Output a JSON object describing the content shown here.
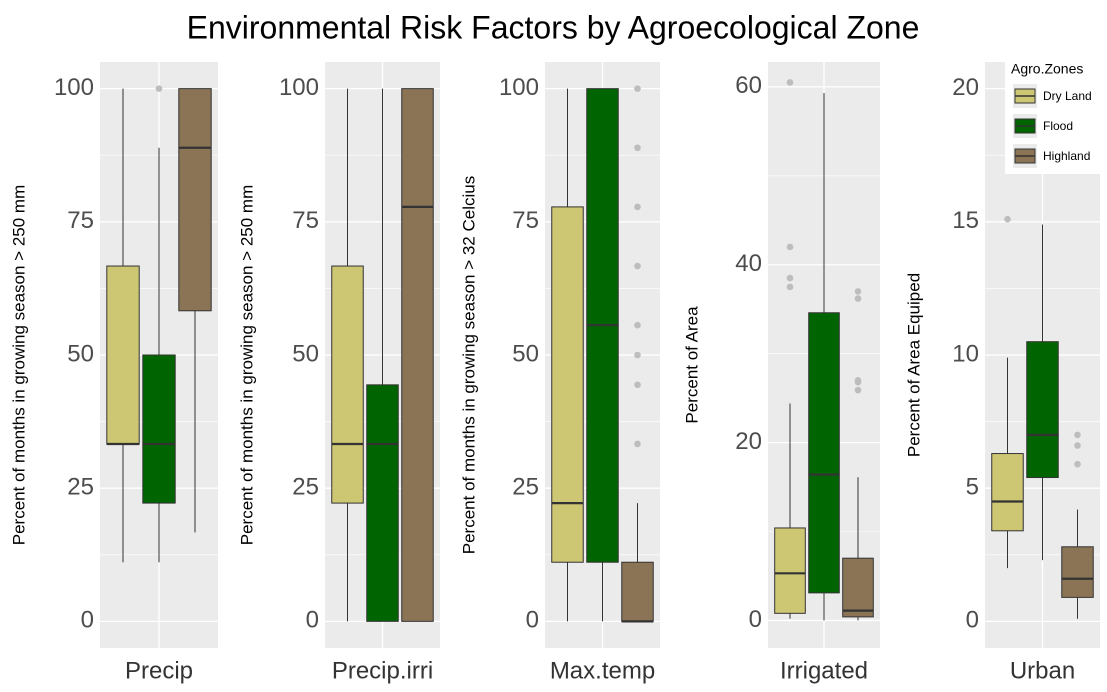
{
  "title": "Environmental Risk Factors by Agroecological Zone",
  "chart_data": [
    {
      "type": "box",
      "category": "Precip",
      "ylabel": "Percent of months in growing season > 250 mm",
      "ylim": [
        -5,
        105
      ],
      "yticks": [
        0,
        25,
        50,
        75,
        100
      ],
      "series": [
        {
          "name": "Dry Land",
          "color": "#cdc673",
          "whislo": 11.1,
          "q1": 33.3,
          "med": 33.3,
          "q3": 66.7,
          "whishi": 100,
          "fliers": []
        },
        {
          "name": "Flood",
          "color": "#006400",
          "whislo": 11.1,
          "q1": 22.2,
          "med": 33.3,
          "q3": 50,
          "whishi": 88.9,
          "fliers": [
            100
          ]
        },
        {
          "name": "Highland",
          "color": "#8b7355",
          "whislo": 16.7,
          "q1": 58.3,
          "med": 88.9,
          "q3": 100,
          "whishi": 100,
          "fliers": []
        }
      ]
    },
    {
      "type": "box",
      "category": "Precip.irri",
      "ylabel": "Percent of months in growing season > 250 mm",
      "ylim": [
        -5,
        105
      ],
      "yticks": [
        0,
        25,
        50,
        75,
        100
      ],
      "series": [
        {
          "name": "Dry Land",
          "color": "#cdc673",
          "whislo": 0,
          "q1": 22.2,
          "med": 33.3,
          "q3": 66.7,
          "whishi": 100,
          "fliers": []
        },
        {
          "name": "Flood",
          "color": "#006400",
          "whislo": 0,
          "q1": 0,
          "med": 33.3,
          "q3": 44.4,
          "whishi": 100,
          "fliers": []
        },
        {
          "name": "Highland",
          "color": "#8b7355",
          "whislo": 0,
          "q1": 0,
          "med": 77.8,
          "q3": 100,
          "whishi": 100,
          "fliers": []
        }
      ]
    },
    {
      "type": "box",
      "category": "Max.temp",
      "ylabel": "Percent of months in growing season > 32 Celcius",
      "ylim": [
        -5,
        105
      ],
      "yticks": [
        0,
        25,
        50,
        75,
        100
      ],
      "series": [
        {
          "name": "Dry Land",
          "color": "#cdc673",
          "whislo": 0,
          "q1": 11.1,
          "med": 22.2,
          "q3": 77.8,
          "whishi": 100,
          "fliers": []
        },
        {
          "name": "Flood",
          "color": "#006400",
          "whislo": 0,
          "q1": 11.1,
          "med": 55.6,
          "q3": 100,
          "whishi": 100,
          "fliers": []
        },
        {
          "name": "Highland",
          "color": "#8b7355",
          "whislo": 0,
          "q1": 0,
          "med": 0,
          "q3": 11.1,
          "whishi": 22.2,
          "fliers": [
            100,
            88.9,
            77.8,
            66.7,
            55.6,
            50,
            44.4,
            33.3
          ]
        }
      ]
    },
    {
      "type": "box",
      "category": "Irrigated",
      "ylabel": "Percent of Area",
      "ylim": [
        -3.1,
        62.8
      ],
      "yticks": [
        0,
        20,
        40,
        60
      ],
      "series": [
        {
          "name": "Dry Land",
          "color": "#cdc673",
          "whislo": 0.2,
          "q1": 0.8,
          "med": 5.3,
          "q3": 10.4,
          "whishi": 24.4,
          "fliers": [
            60.5,
            42,
            38.5,
            37.5
          ]
        },
        {
          "name": "Flood",
          "color": "#006400",
          "whislo": 0,
          "q1": 3.1,
          "med": 16.4,
          "q3": 34.6,
          "whishi": 59.3,
          "fliers": []
        },
        {
          "name": "Highland",
          "color": "#8b7355",
          "whislo": 0,
          "q1": 0.4,
          "med": 1.1,
          "q3": 7,
          "whishi": 16.1,
          "fliers": [
            37,
            36.2,
            27,
            26.8,
            25.9
          ]
        }
      ]
    },
    {
      "type": "box",
      "category": "Urban",
      "ylabel": "Percent of Area Equiped",
      "ylim": [
        -1,
        21
      ],
      "yticks": [
        0,
        5,
        10,
        15,
        20
      ],
      "legend_title": "Agro.Zones",
      "series": [
        {
          "name": "Dry Land",
          "color": "#cdc673",
          "whislo": 2,
          "q1": 3.4,
          "med": 4.5,
          "q3": 6.3,
          "whishi": 9.9,
          "fliers": [
            15.1
          ]
        },
        {
          "name": "Flood",
          "color": "#006400",
          "whislo": 2.3,
          "q1": 5.4,
          "med": 7,
          "q3": 10.5,
          "whishi": 14.9,
          "fliers": []
        },
        {
          "name": "Highland",
          "color": "#8b7355",
          "whislo": 0.1,
          "q1": 0.9,
          "med": 1.6,
          "q3": 2.8,
          "whishi": 4.2,
          "fliers": [
            7,
            6.6,
            5.9
          ]
        }
      ]
    }
  ]
}
